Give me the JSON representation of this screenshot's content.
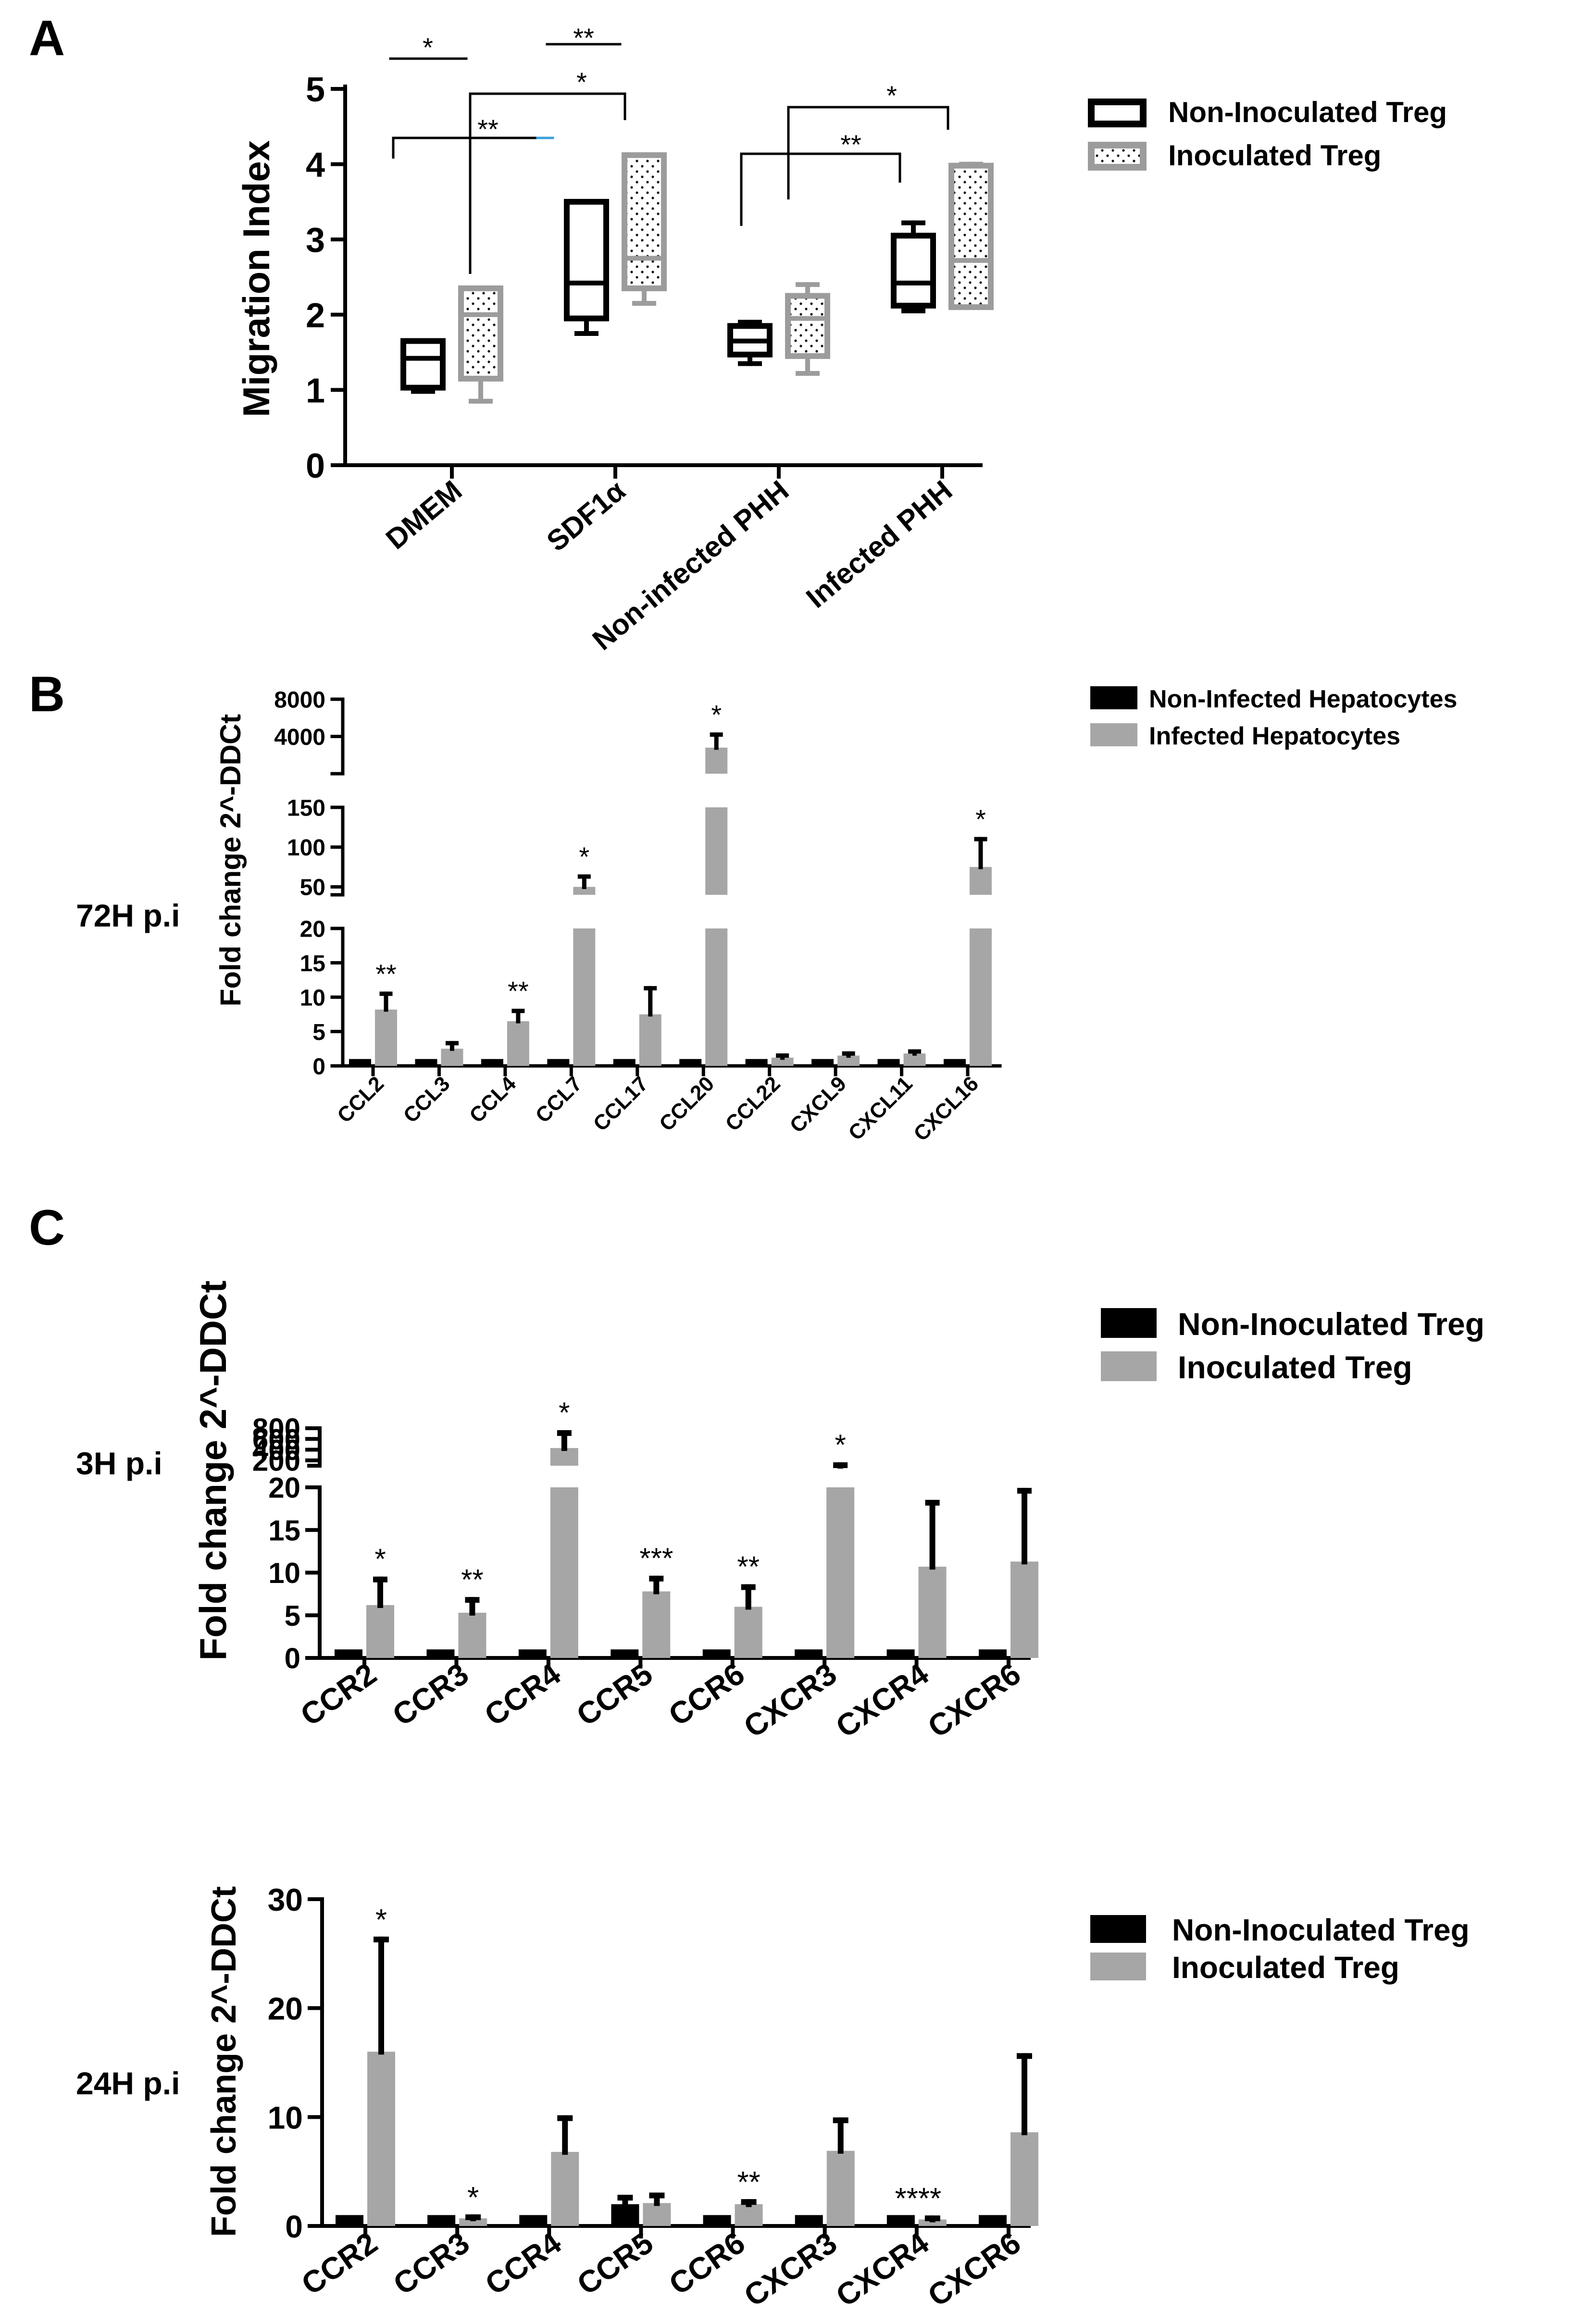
{
  "chart_data": [
    {
      "panel": "A",
      "type": "box",
      "ylabel": "Migration Index",
      "ylim": [
        0,
        5
      ],
      "yticks": [
        0,
        1,
        2,
        3,
        4,
        5
      ],
      "categories": [
        "DMEM",
        "SDF1α",
        "Non-infected PHH",
        "Infected PHH"
      ],
      "legend_position": "top-right",
      "series": [
        {
          "name": "Non-Inoculated Treg",
          "boxes": [
            {
              "min": 0.98,
              "q1": 1.03,
              "median": 1.42,
              "q3": 1.65,
              "max": 1.65
            },
            {
              "min": 1.75,
              "q1": 1.95,
              "median": 2.42,
              "q3": 3.5,
              "max": 3.5
            },
            {
              "min": 1.35,
              "q1": 1.47,
              "median": 1.65,
              "q3": 1.85,
              "max": 1.9
            },
            {
              "min": 2.05,
              "q1": 2.12,
              "median": 2.42,
              "q3": 3.05,
              "max": 3.22
            }
          ]
        },
        {
          "name": "Inoculated Treg",
          "boxes": [
            {
              "min": 0.85,
              "q1": 1.15,
              "median": 2.0,
              "q3": 2.35,
              "max": 2.35
            },
            {
              "min": 2.15,
              "q1": 2.35,
              "median": 2.75,
              "q3": 4.12,
              "max": 4.12
            },
            {
              "min": 1.22,
              "q1": 1.45,
              "median": 1.95,
              "q3": 2.25,
              "max": 2.4
            },
            {
              "min": 2.1,
              "q1": 2.1,
              "median": 2.72,
              "q3": 3.98,
              "max": 4.0
            }
          ]
        }
      ],
      "annotations": [
        "*",
        "**",
        "*",
        "**",
        "*",
        "**"
      ]
    },
    {
      "panel": "B",
      "row_label": "72H p.i",
      "type": "bar",
      "ylabel": "Fold change 2^-DDCt",
      "categories": [
        "CCL2",
        "CCL3",
        "CCL4",
        "CCL7",
        "CCL17",
        "CCL20",
        "CCL22",
        "CXCL9",
        "CXCL11",
        "CXCL16"
      ],
      "segments": [
        {
          "range": [
            0,
            20
          ],
          "ticks": [
            "0",
            "5",
            "10",
            "15",
            "20"
          ]
        },
        {
          "range": [
            40,
            150
          ],
          "ticks": [
            "50",
            "100",
            "150"
          ]
        },
        {
          "range": [
            0,
            8000
          ],
          "ticks": [
            "4000",
            "8000"
          ]
        }
      ],
      "legend_position": "top-right",
      "series": [
        {
          "name": "Non-Infected Hepatocytes",
          "values": [
            1,
            1,
            1,
            1,
            1,
            1,
            1,
            1,
            1,
            1
          ]
        },
        {
          "name": "Infected Hepatocytes",
          "values": [
            8.2,
            2.5,
            6.5,
            50,
            7.5,
            2800,
            1.2,
            1.5,
            1.8,
            75
          ],
          "errors": [
            2.3,
            0.8,
            1.5,
            13,
            3.8,
            1400,
            0.3,
            0.3,
            0.3,
            35
          ]
        }
      ],
      "significance": [
        "**",
        "",
        "**",
        "*",
        "",
        "*",
        "",
        "",
        "",
        "*"
      ]
    },
    {
      "panel": "C",
      "row_label": "3H p.i",
      "type": "bar",
      "ylabel": "Fold change 2^-DDCt",
      "categories": [
        "CCR2",
        "CCR3",
        "CCR4",
        "CCR5",
        "CCR6",
        "CXCR3",
        "CXCR4",
        "CXCR6"
      ],
      "segments": [
        {
          "range": [
            0,
            20
          ],
          "ticks": [
            "0",
            "5",
            "10",
            "15",
            "20"
          ]
        },
        {
          "range": [
            100,
            800
          ],
          "ticks": [
            "200",
            "400",
            "600",
            "800"
          ]
        }
      ],
      "legend_position": "top-right",
      "series": [
        {
          "name": "Non-Inoculated Treg",
          "values": [
            1,
            1,
            1,
            1,
            1,
            1,
            1,
            1
          ]
        },
        {
          "name": "Inoculated Treg",
          "values": [
            6.2,
            5.3,
            430,
            7.8,
            6.0,
            100,
            10.7,
            11.3
          ],
          "errors": [
            3.0,
            1.5,
            280,
            1.5,
            2.3,
            10,
            7.5,
            8.3
          ]
        }
      ],
      "significance": [
        "*",
        "**",
        "*",
        "***",
        "**",
        "*",
        "",
        ""
      ]
    },
    {
      "panel": "C",
      "row_label": "24H p.i",
      "type": "bar",
      "ylabel": "Fold change 2^-DDCt",
      "categories": [
        "CCR2",
        "CCR3",
        "CCR4",
        "CCR5",
        "CCR6",
        "CXCR3",
        "CXCR4",
        "CXCR6"
      ],
      "ylim": [
        0,
        30
      ],
      "yticks": [
        0,
        10,
        20,
        30
      ],
      "legend_position": "top-right",
      "series": [
        {
          "name": "Non-Inoculated Treg",
          "values": [
            1,
            1,
            1,
            2.0,
            1,
            1,
            1,
            1
          ],
          "errors": [
            0,
            0,
            0,
            0.6,
            0,
            0,
            0,
            0
          ]
        },
        {
          "name": "Inoculated Treg",
          "values": [
            16.0,
            0.7,
            6.8,
            2.1,
            2.0,
            6.9,
            0.6,
            8.6
          ],
          "errors": [
            10.3,
            0.1,
            3.1,
            0.7,
            0.2,
            2.8,
            0.1,
            7.0
          ]
        }
      ],
      "significance": [
        "*",
        "*",
        "",
        "",
        "**",
        "",
        "****",
        ""
      ]
    }
  ],
  "panel_letters": [
    "A",
    "B",
    "C"
  ],
  "colors": {
    "dark": "#000000",
    "gray": "#a6a6a6",
    "box_gray": "#9c9c9c",
    "cyan_mark": "#3aa0dc"
  }
}
